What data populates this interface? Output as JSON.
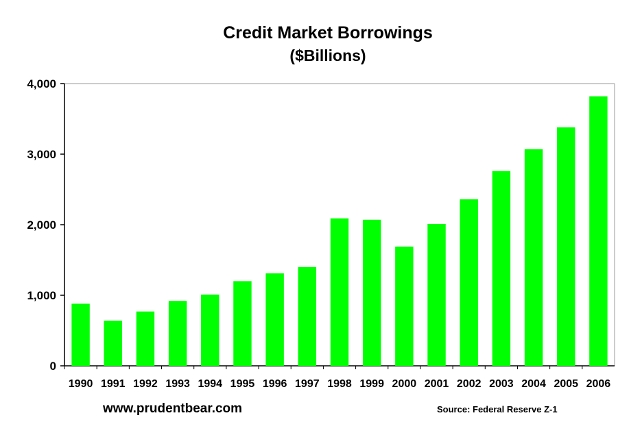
{
  "chart_data": {
    "type": "bar",
    "title": "Credit Market Borrowings",
    "subtitle": "($Billions)",
    "xlabel": "",
    "ylabel": "",
    "categories": [
      "1990",
      "1991",
      "1992",
      "1993",
      "1994",
      "1995",
      "1996",
      "1997",
      "1998",
      "1999",
      "2000",
      "2001",
      "2002",
      "2003",
      "2004",
      "2005",
      "2006"
    ],
    "values": [
      880,
      640,
      770,
      920,
      1010,
      1200,
      1310,
      1400,
      2090,
      2070,
      1690,
      2010,
      2360,
      2760,
      3070,
      3380,
      3820
    ],
    "ylim": [
      0,
      4000
    ],
    "yticks": [
      "0",
      "1,000",
      "2,000",
      "3,000",
      "4,000"
    ],
    "grid": false,
    "legend": "none",
    "bar_color": "#00ff00"
  },
  "footer": {
    "website": "www.prudentbear.com",
    "source": "Source: Federal Reserve Z-1"
  }
}
